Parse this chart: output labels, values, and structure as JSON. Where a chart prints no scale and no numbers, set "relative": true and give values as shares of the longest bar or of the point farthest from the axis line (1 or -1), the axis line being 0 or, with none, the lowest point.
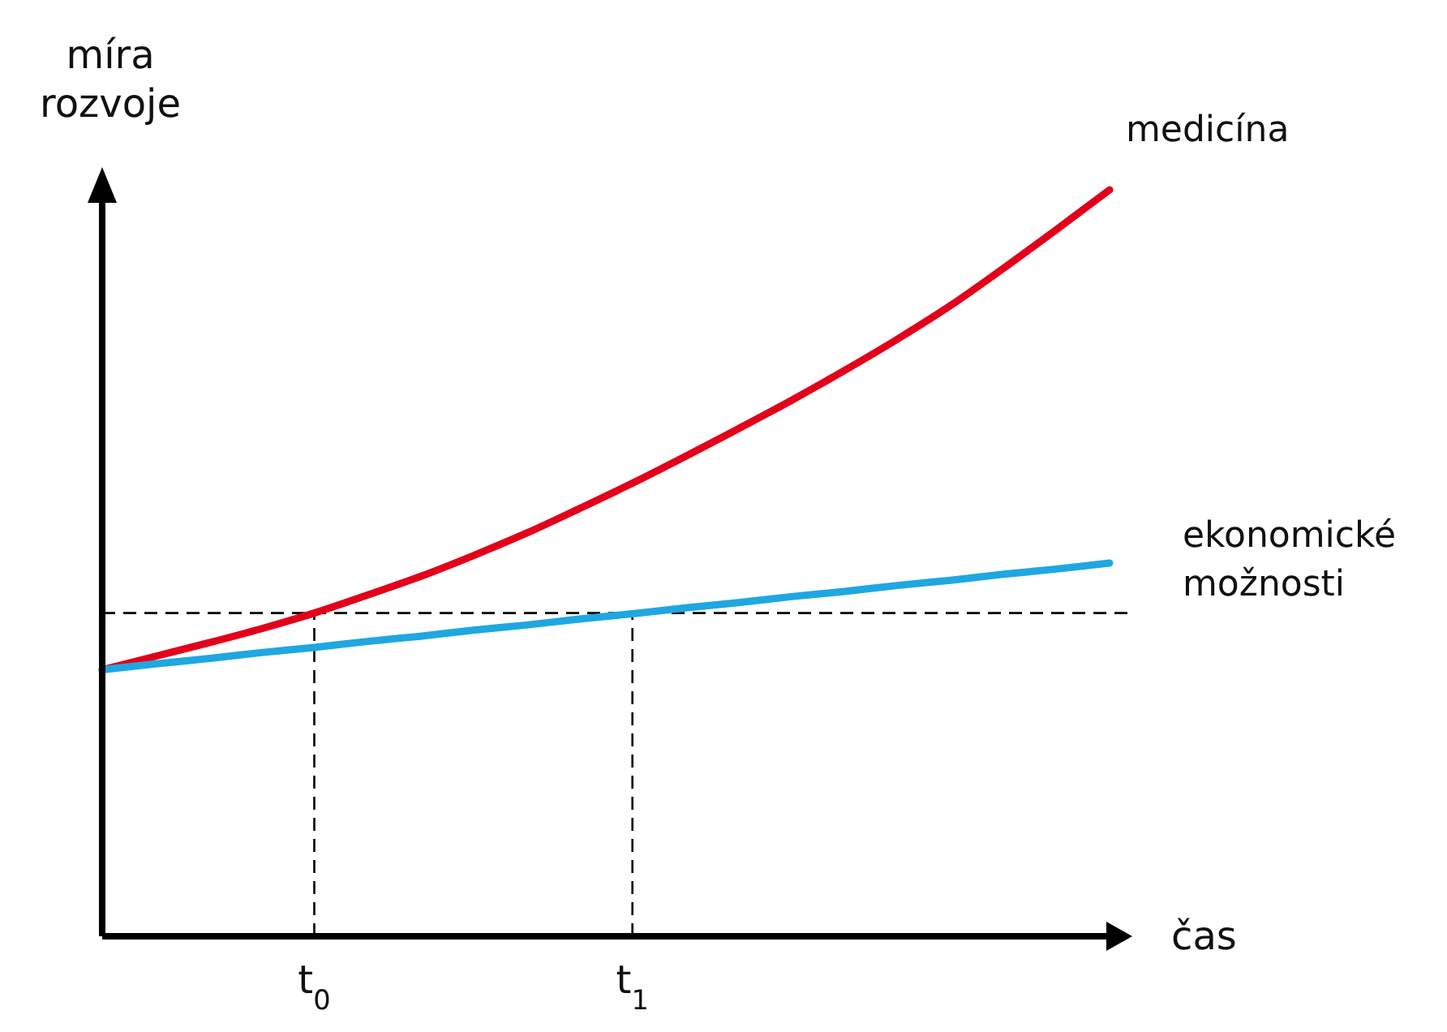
{
  "chart_data": {
    "type": "line",
    "relative": true,
    "xlabel": "čas",
    "ylabel": "míra rozvoje",
    "categories": [
      null,
      null,
      null,
      null,
      "t$_{0}$",
      null,
      null,
      null,
      null,
      null,
      "t$_{1}$",
      null,
      null,
      null,
      null,
      null,
      null,
      null,
      null,
      null
    ],
    "series": [
      {
        "name": "medicína",
        "color": "#e3001b",
        "values": [
          0.357,
          0.375,
          0.393,
          0.412,
          0.433,
          0.457,
          0.482,
          0.51,
          0.54,
          0.573,
          0.607,
          0.643,
          0.68,
          0.718,
          0.758,
          0.8,
          0.845,
          0.895,
          0.947,
          1
        ]
      },
      {
        "name": "ekonomické možnosti",
        "color": "#1fa7e1",
        "values": [
          0.357,
          0.365,
          0.372,
          0.38,
          0.387,
          0.395,
          0.402,
          0.41,
          0.417,
          0.425,
          0.432,
          0.44,
          0.447,
          0.455,
          0.462,
          0.47,
          0.477,
          0.485,
          0.492,
          0.5
        ]
      }
    ],
    "ref_lines": [
      {
        "axis": "y",
        "value": 0.433,
        "line_style": "dashed"
      },
      {
        "axis": "x",
        "value": "t$_{0}$",
        "line_style": "dashed"
      },
      {
        "axis": "x",
        "value": "t$_{1}$",
        "line_style": "dashed"
      }
    ],
    "grid": false,
    "marker": "none",
    "line_style": "solid"
  }
}
